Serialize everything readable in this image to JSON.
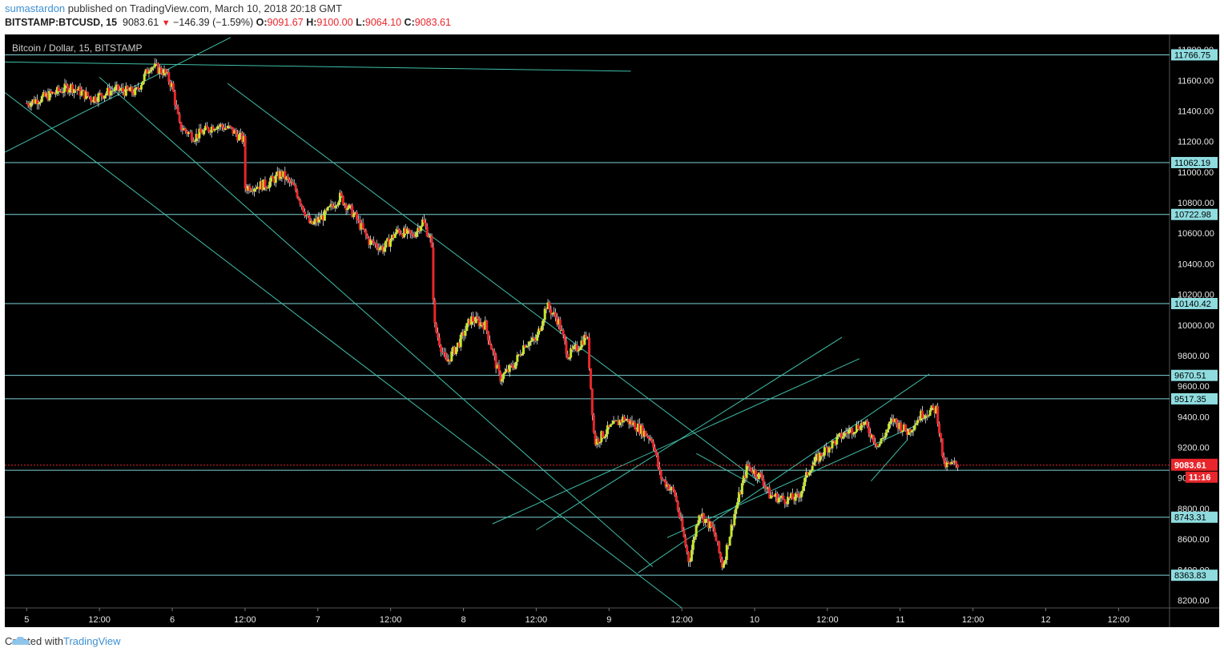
{
  "header": {
    "author": "sumastardon",
    "published_text": "published on TradingView.com, March 10, 2018 20:18 GMT",
    "symbol": "BITSTAMP:BTCUSD, 15",
    "last": "9083.61",
    "change": "−146.39 (−1.59%)",
    "open_label": "O:",
    "open": "9091.67",
    "high_label": "H:",
    "high": "9100.00",
    "low_label": "L:",
    "low": "9064.10",
    "close_label": "C:",
    "close": "9083.61"
  },
  "chart_title": "Bitcoin / Dollar, 15, BITSTAMP",
  "footer": {
    "created_with": "Created with",
    "brand": "TradingView"
  },
  "colors": {
    "up": "#c6e62a",
    "down": "#e8262b",
    "line": "#7fd3d6",
    "trend": "#3fbfa9",
    "price_tag": "#e8262b",
    "level_tag": "#8fdcdf"
  },
  "chart_data": {
    "type": "candlestick",
    "title": "Bitcoin / Dollar, 15, BITSTAMP",
    "xlabel": "",
    "ylabel": "",
    "ylim": [
      8150,
      11900
    ],
    "y_ticks": [
      8200,
      8400,
      8600,
      8800,
      9000,
      9200,
      9400,
      9600,
      9800,
      10000,
      10200,
      10400,
      10600,
      10800,
      11000,
      11200,
      11400,
      11600,
      11800
    ],
    "x_ticks": [
      "5",
      "12:00",
      "6",
      "12:00",
      "7",
      "12:00",
      "8",
      "12:00",
      "9",
      "12:00",
      "10",
      "12:00",
      "11",
      "12:00",
      "12",
      "12:00"
    ],
    "x_tick_day_index": [
      0,
      0.5,
      1,
      1.5,
      2,
      2.5,
      3,
      3.5,
      4,
      4.5,
      5,
      5.5,
      6,
      6.5,
      7,
      7.5
    ],
    "x_range_days": [
      -0.15,
      7.85
    ],
    "horizontal_levels": [
      {
        "value": 11766.75,
        "label": "11766.75"
      },
      {
        "value": 11062.19,
        "label": "11062.19"
      },
      {
        "value": 10722.98,
        "label": "10722.98"
      },
      {
        "value": 10140.42,
        "label": "10140.42"
      },
      {
        "value": 9670.51,
        "label": "9670.51"
      },
      {
        "value": 9517.35,
        "label": "9517.35"
      },
      {
        "value": 9050,
        "label": ""
      },
      {
        "value": 8743.31,
        "label": "8743.31"
      },
      {
        "value": 8363.83,
        "label": "8363.83"
      }
    ],
    "current_price": {
      "value": 9083.61,
      "label": "9083.61",
      "countdown": "11:16"
    },
    "trend_lines": [
      [
        [
          -0.15,
          11720
        ],
        [
          4.15,
          11660
        ]
      ],
      [
        [
          -0.15,
          11130
        ],
        [
          1.4,
          11880
        ]
      ],
      [
        [
          -0.15,
          11520
        ],
        [
          4.5,
          8150
        ]
      ],
      [
        [
          0.5,
          11620
        ],
        [
          4.3,
          8420
        ]
      ],
      [
        [
          1.38,
          11580
        ],
        [
          5.04,
          8970
        ]
      ],
      [
        [
          3.5,
          8660
        ],
        [
          5.6,
          9920
        ]
      ],
      [
        [
          3.2,
          8700
        ],
        [
          5.72,
          9780
        ]
      ],
      [
        [
          4.2,
          8380
        ],
        [
          6.2,
          9680
        ]
      ],
      [
        [
          4.4,
          8610
        ],
        [
          6.1,
          9340
        ]
      ],
      [
        [
          5.8,
          8980
        ],
        [
          6.05,
          9250
        ]
      ],
      [
        [
          4.6,
          9160
        ],
        [
          5.0,
          8950
        ]
      ]
    ],
    "price_path": [
      [
        0.0,
        11450
      ],
      [
        0.15,
        11500
      ],
      [
        0.3,
        11560
      ],
      [
        0.45,
        11480
      ],
      [
        0.6,
        11540
      ],
      [
        0.75,
        11520
      ],
      [
        0.85,
        11700
      ],
      [
        0.95,
        11650
      ],
      [
        1.0,
        11560
      ],
      [
        1.05,
        11300
      ],
      [
        1.15,
        11230
      ],
      [
        1.3,
        11310
      ],
      [
        1.4,
        11280
      ],
      [
        1.5,
        11200
      ],
      [
        1.5,
        10900
      ],
      [
        1.65,
        10920
      ],
      [
        1.75,
        10990
      ],
      [
        1.85,
        10880
      ],
      [
        1.95,
        10650
      ],
      [
        2.05,
        10720
      ],
      [
        2.15,
        10840
      ],
      [
        2.25,
        10720
      ],
      [
        2.35,
        10550
      ],
      [
        2.45,
        10500
      ],
      [
        2.55,
        10620
      ],
      [
        2.65,
        10580
      ],
      [
        2.72,
        10680
      ],
      [
        2.78,
        10550
      ],
      [
        2.8,
        10000
      ],
      [
        2.88,
        9750
      ],
      [
        2.98,
        9900
      ],
      [
        3.05,
        10040
      ],
      [
        3.15,
        10000
      ],
      [
        3.25,
        9650
      ],
      [
        3.35,
        9740
      ],
      [
        3.42,
        9880
      ],
      [
        3.5,
        9900
      ],
      [
        3.57,
        10130
      ],
      [
        3.65,
        10030
      ],
      [
        3.72,
        9800
      ],
      [
        3.78,
        9850
      ],
      [
        3.85,
        9940
      ],
      [
        3.9,
        9230
      ],
      [
        4.0,
        9320
      ],
      [
        4.1,
        9390
      ],
      [
        4.2,
        9330
      ],
      [
        4.3,
        9250
      ],
      [
        4.35,
        9010
      ],
      [
        4.45,
        8900
      ],
      [
        4.55,
        8450
      ],
      [
        4.62,
        8780
      ],
      [
        4.72,
        8650
      ],
      [
        4.78,
        8420
      ],
      [
        4.86,
        8760
      ],
      [
        4.95,
        9080
      ],
      [
        5.05,
        9000
      ],
      [
        5.1,
        8890
      ],
      [
        5.2,
        8860
      ],
      [
        5.3,
        8870
      ],
      [
        5.38,
        9070
      ],
      [
        5.5,
        9200
      ],
      [
        5.62,
        9290
      ],
      [
        5.75,
        9360
      ],
      [
        5.85,
        9210
      ],
      [
        5.95,
        9380
      ],
      [
        6.05,
        9300
      ],
      [
        6.15,
        9420
      ],
      [
        6.25,
        9450
      ],
      [
        6.3,
        9080
      ],
      [
        6.4,
        9090
      ]
    ]
  }
}
